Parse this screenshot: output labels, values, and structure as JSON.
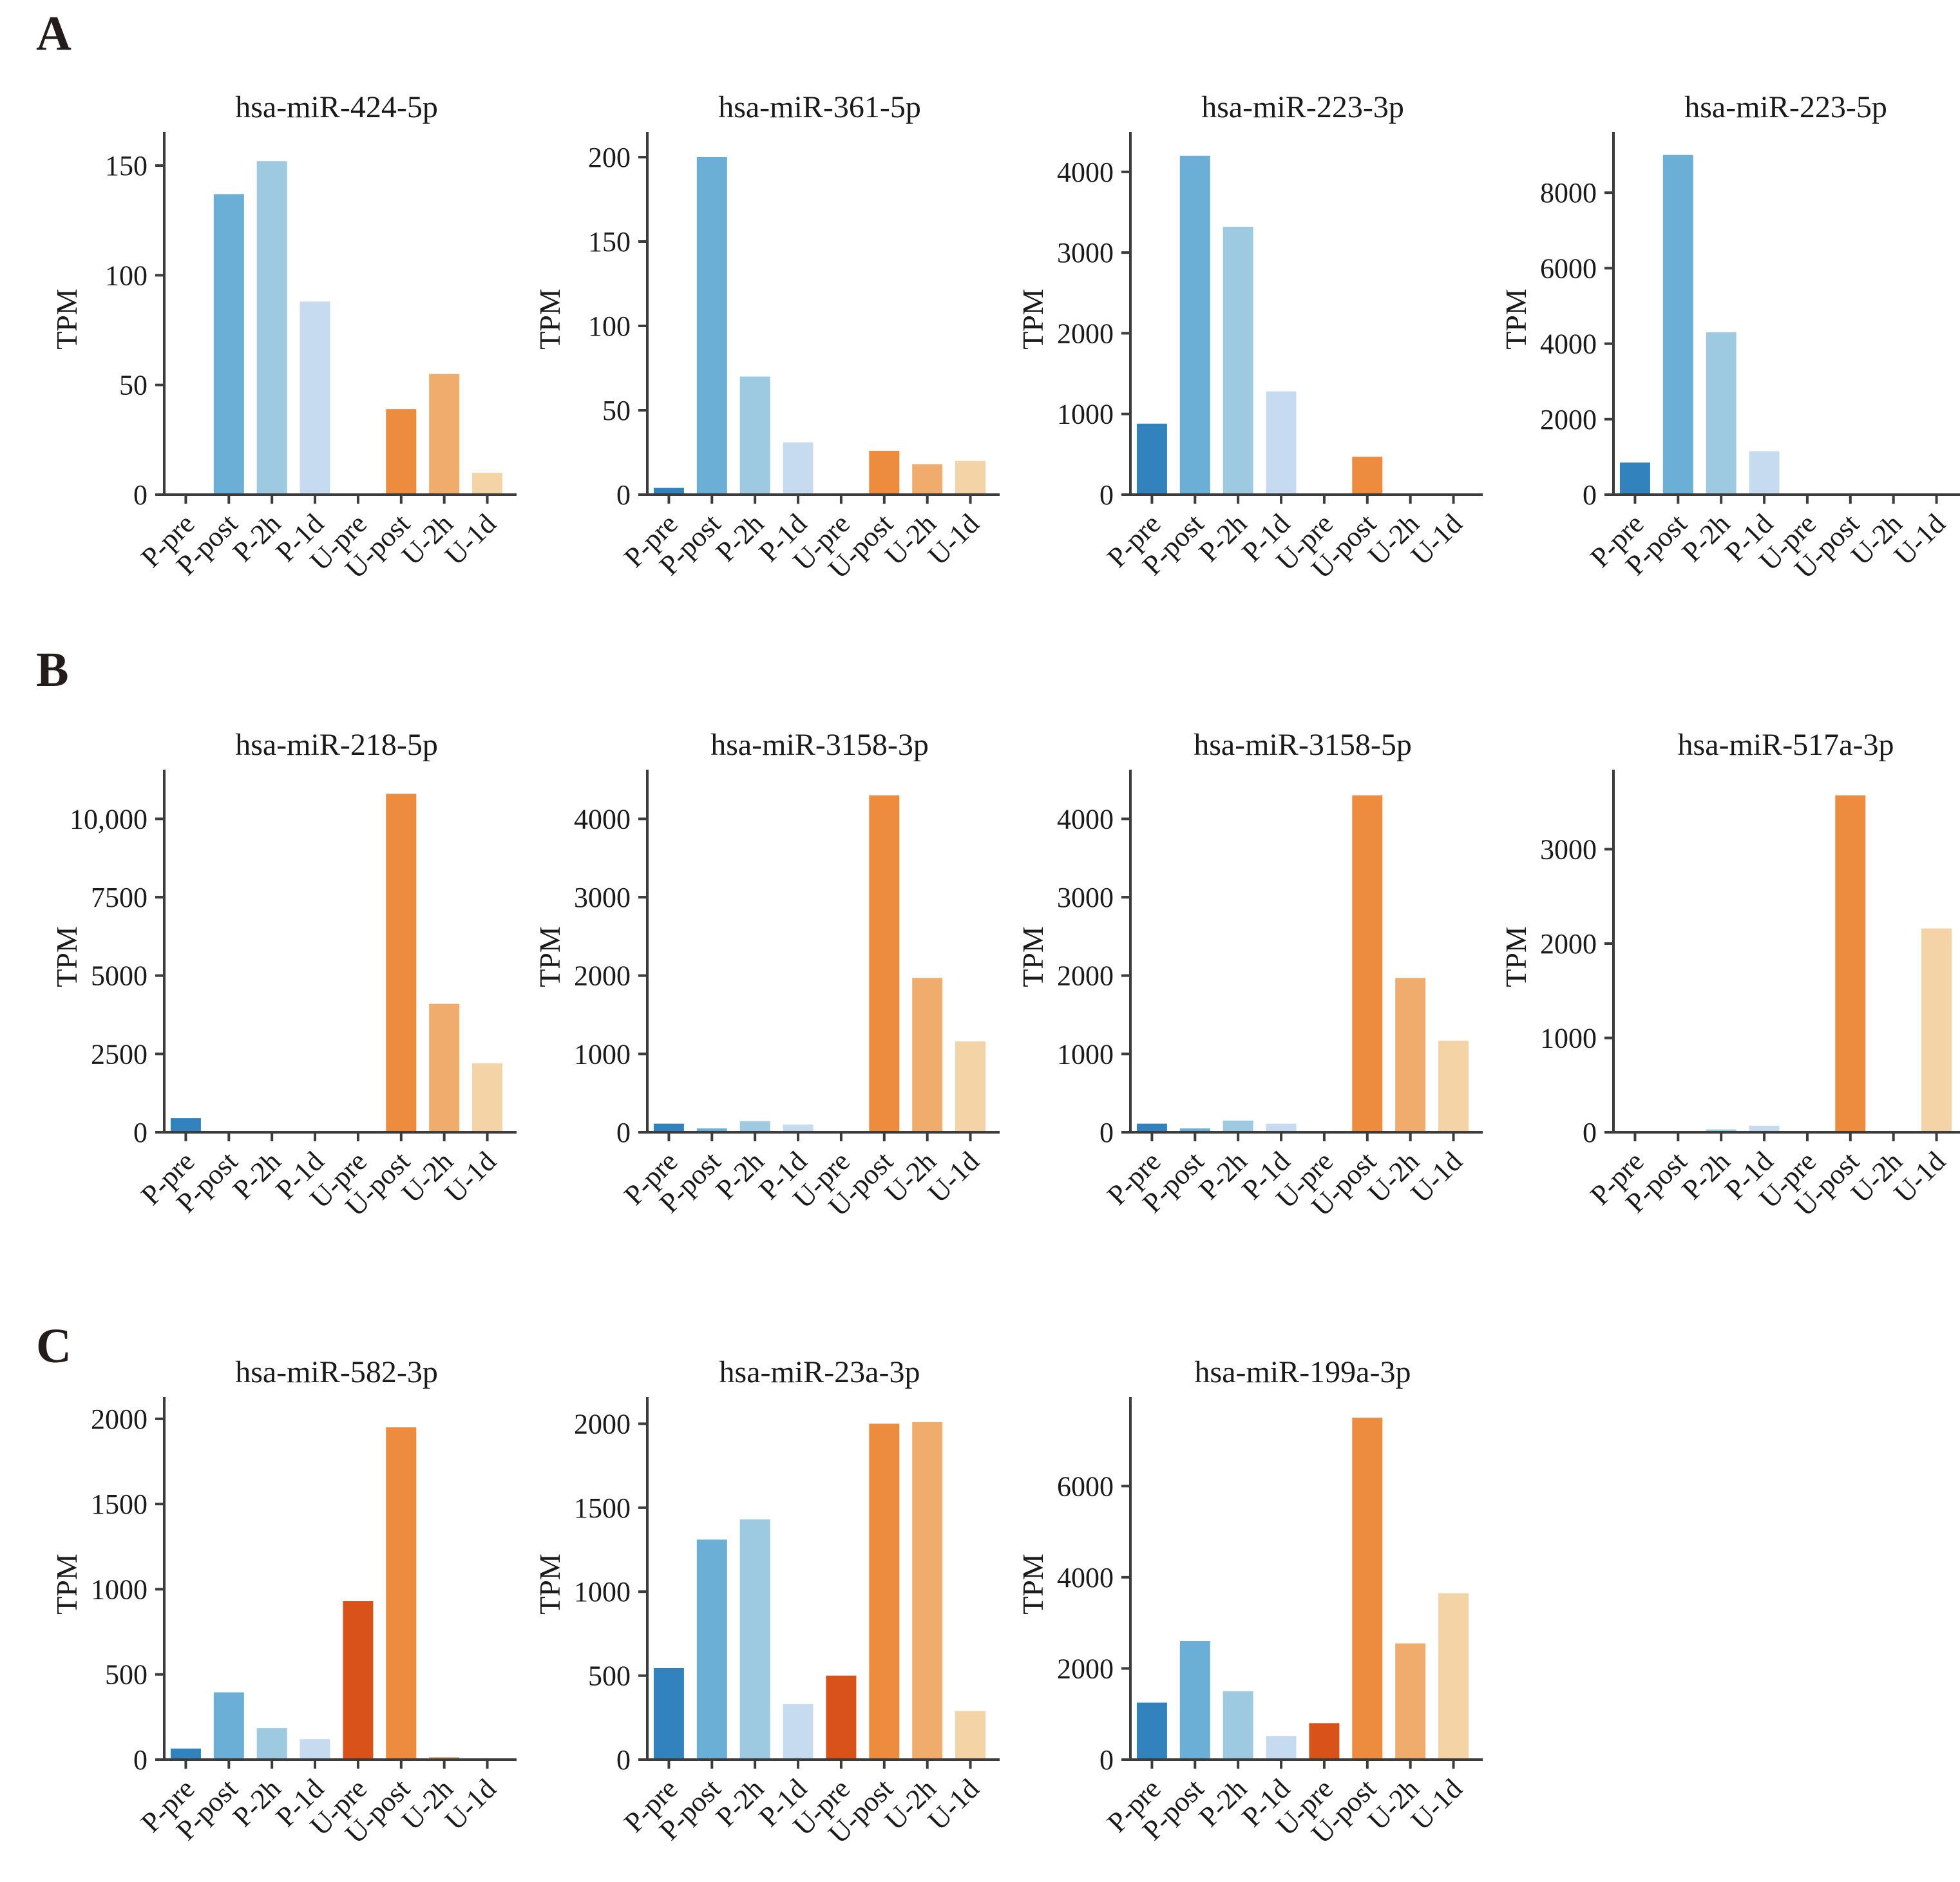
{
  "figure": {
    "ylabel": "TPM",
    "categories": [
      "P-pre",
      "P-post",
      "P-2h",
      "P-1d",
      "U-pre",
      "U-post",
      "U-2h",
      "U-1d"
    ],
    "palette": [
      "#3182bd",
      "#6baed6",
      "#9ecae1",
      "#c6dbef",
      "#d9521a",
      "#ed8b3f",
      "#f0ac6c",
      "#f4d3a6"
    ],
    "axis_color": "#3c3c3c",
    "text_color": "#1a1a1a",
    "panels": [
      {
        "label": "A"
      },
      {
        "label": "B"
      },
      {
        "label": "C"
      }
    ]
  },
  "chart_data": [
    {
      "type": "bar",
      "panel": "A",
      "title": "hsa-miR-424-5p",
      "ylabel": "TPM",
      "categories": [
        "P-pre",
        "P-post",
        "P-2h",
        "P-1d",
        "U-pre",
        "U-post",
        "U-2h",
        "U-1d"
      ],
      "values": [
        0,
        137,
        152,
        88,
        0,
        39,
        55,
        10
      ],
      "ytick_values": [
        0,
        50,
        100,
        150
      ],
      "ytick_labels": [
        "0",
        "50",
        "100",
        "150"
      ],
      "ylim": [
        0,
        160
      ]
    },
    {
      "type": "bar",
      "panel": "A",
      "title": "hsa-miR-361-5p",
      "ylabel": "TPM",
      "categories": [
        "P-pre",
        "P-post",
        "P-2h",
        "P-1d",
        "U-pre",
        "U-post",
        "U-2h",
        "U-1d"
      ],
      "values": [
        4,
        200,
        70,
        31,
        0,
        26,
        18,
        20
      ],
      "ytick_values": [
        0,
        50,
        100,
        150,
        200
      ],
      "ytick_labels": [
        "0",
        "50",
        "100",
        "150",
        "200"
      ],
      "ylim": [
        0,
        208
      ]
    },
    {
      "type": "bar",
      "panel": "A",
      "title": "hsa-miR-223-3p",
      "ylabel": "TPM",
      "categories": [
        "P-pre",
        "P-post",
        "P-2h",
        "P-1d",
        "U-pre",
        "U-post",
        "U-2h",
        "U-1d"
      ],
      "values": [
        880,
        4200,
        3320,
        1280,
        0,
        470,
        0,
        0
      ],
      "ytick_values": [
        0,
        1000,
        2000,
        3000,
        4000
      ],
      "ytick_labels": [
        "0",
        "1000",
        "2000",
        "3000",
        "4000"
      ],
      "ylim": [
        0,
        4350
      ]
    },
    {
      "type": "bar",
      "panel": "A",
      "title": "hsa-miR-223-5p",
      "ylabel": "TPM",
      "categories": [
        "P-pre",
        "P-post",
        "P-2h",
        "P-1d",
        "U-pre",
        "U-post",
        "U-2h",
        "U-1d"
      ],
      "values": [
        850,
        9000,
        4300,
        1150,
        0,
        0,
        0,
        0
      ],
      "ytick_values": [
        0,
        2000,
        4000,
        6000,
        8000
      ],
      "ytick_labels": [
        "0",
        "2000",
        "4000",
        "6000",
        "8000"
      ],
      "ylim": [
        0,
        9300
      ]
    },
    {
      "type": "bar",
      "panel": "B",
      "title": "hsa-miR-218-5p",
      "ylabel": "TPM",
      "categories": [
        "P-pre",
        "P-post",
        "P-2h",
        "P-1d",
        "U-pre",
        "U-post",
        "U-2h",
        "U-1d"
      ],
      "values": [
        450,
        0,
        30,
        0,
        0,
        10800,
        4100,
        2200
      ],
      "ytick_values": [
        0,
        2500,
        5000,
        7500,
        10000
      ],
      "ytick_labels": [
        "0",
        "2500",
        "5000",
        "7500",
        "10,000"
      ],
      "ylim": [
        0,
        11200
      ]
    },
    {
      "type": "bar",
      "panel": "B",
      "title": "hsa-miR-3158-3p",
      "ylabel": "TPM",
      "categories": [
        "P-pre",
        "P-post",
        "P-2h",
        "P-1d",
        "U-pre",
        "U-post",
        "U-2h",
        "U-1d"
      ],
      "values": [
        110,
        50,
        140,
        100,
        0,
        4300,
        1970,
        1160
      ],
      "ytick_values": [
        0,
        1000,
        2000,
        3000,
        4000
      ],
      "ytick_labels": [
        "0",
        "1000",
        "2000",
        "3000",
        "4000"
      ],
      "ylim": [
        0,
        4480
      ]
    },
    {
      "type": "bar",
      "panel": "B",
      "title": "hsa-miR-3158-5p",
      "ylabel": "TPM",
      "categories": [
        "P-pre",
        "P-post",
        "P-2h",
        "P-1d",
        "U-pre",
        "U-post",
        "U-2h",
        "U-1d"
      ],
      "values": [
        110,
        50,
        150,
        110,
        0,
        4300,
        1970,
        1170
      ],
      "ytick_values": [
        0,
        1000,
        2000,
        3000,
        4000
      ],
      "ytick_labels": [
        "0",
        "1000",
        "2000",
        "3000",
        "4000"
      ],
      "ylim": [
        0,
        4480
      ]
    },
    {
      "type": "bar",
      "panel": "B",
      "title": "hsa-miR-517a-3p",
      "ylabel": "TPM",
      "categories": [
        "P-pre",
        "P-post",
        "P-2h",
        "P-1d",
        "U-pre",
        "U-post",
        "U-2h",
        "U-1d"
      ],
      "values": [
        0,
        0,
        30,
        70,
        0,
        3570,
        0,
        2160
      ],
      "ytick_values": [
        0,
        1000,
        2000,
        3000
      ],
      "ytick_labels": [
        "0",
        "1000",
        "2000",
        "3000"
      ],
      "ylim": [
        0,
        3720
      ]
    },
    {
      "type": "bar",
      "panel": "C",
      "title": "hsa-miR-582-3p",
      "ylabel": "TPM",
      "categories": [
        "P-pre",
        "P-post",
        "P-2h",
        "P-1d",
        "U-pre",
        "U-post",
        "U-2h",
        "U-1d"
      ],
      "values": [
        65,
        395,
        185,
        120,
        930,
        1950,
        15,
        0
      ],
      "ytick_values": [
        0,
        500,
        1000,
        1500,
        2000
      ],
      "ytick_labels": [
        "0",
        "500",
        "1000",
        "1500",
        "2000"
      ],
      "ylim": [
        0,
        2060
      ]
    },
    {
      "type": "bar",
      "panel": "C",
      "title": "hsa-miR-23a-3p",
      "ylabel": "TPM",
      "categories": [
        "P-pre",
        "P-post",
        "P-2h",
        "P-1d",
        "U-pre",
        "U-post",
        "U-2h",
        "U-1d"
      ],
      "values": [
        545,
        1310,
        1430,
        330,
        500,
        2000,
        2010,
        290
      ],
      "ytick_values": [
        0,
        500,
        1000,
        1500,
        2000
      ],
      "ytick_labels": [
        "0",
        "500",
        "1000",
        "1500",
        "2000"
      ],
      "ylim": [
        0,
        2090
      ]
    },
    {
      "type": "bar",
      "panel": "C",
      "title": "hsa-miR-199a-3p",
      "ylabel": "TPM",
      "categories": [
        "P-pre",
        "P-post",
        "P-2h",
        "P-1d",
        "U-pre",
        "U-post",
        "U-2h",
        "U-1d"
      ],
      "values": [
        1250,
        2600,
        1500,
        520,
        800,
        7500,
        2550,
        3650
      ],
      "ytick_values": [
        0,
        2000,
        4000,
        6000
      ],
      "ytick_labels": [
        "0",
        "2000",
        "4000",
        "6000"
      ],
      "ylim": [
        0,
        7700
      ]
    }
  ]
}
